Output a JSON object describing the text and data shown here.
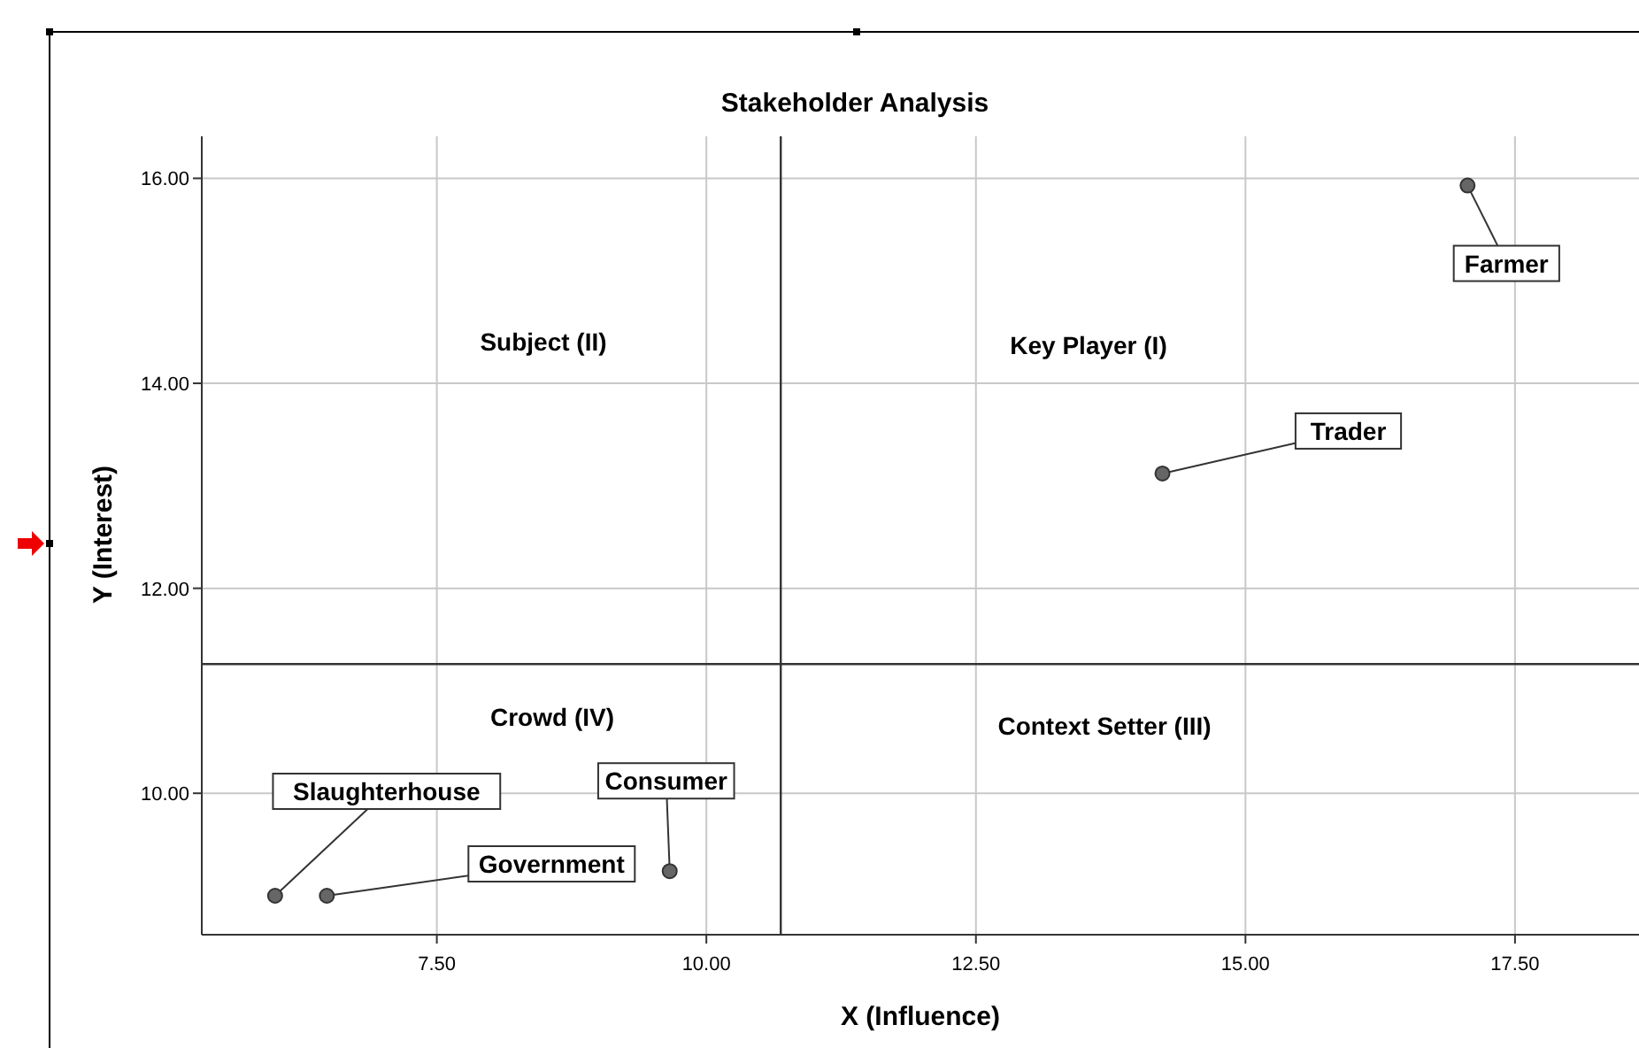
{
  "chart_data": {
    "type": "scatter",
    "title": "Stakeholder Analysis",
    "xlabel": "X (Influence)",
    "ylabel": "Y (Interest)",
    "x": [
      17.06,
      14.23,
      9.66,
      6.48,
      6.0
    ],
    "series": [
      {
        "color": "#666666",
        "values": [
          15.93,
          13.12,
          9.24,
          9.0,
          9.0
        ]
      }
    ],
    "xlim": [
      5.32,
      18.65
    ],
    "ylim": [
      8.62,
      16.41
    ],
    "xticks": [
      {
        "value": 7.5,
        "label": "7.50"
      },
      {
        "value": 10,
        "label": "10.00"
      },
      {
        "value": 12.5,
        "label": "12.50"
      },
      {
        "value": 15,
        "label": "15.00"
      },
      {
        "value": 17.5,
        "label": "17.50"
      }
    ],
    "yticks": [
      {
        "value": 10,
        "label": "10.00"
      },
      {
        "value": 12,
        "label": "12.00"
      },
      {
        "value": 14,
        "label": "14.00"
      },
      {
        "value": 16,
        "label": "16.00"
      }
    ],
    "grid": true,
    "marker": "circle",
    "ref_lines": [
      {
        "axis": "x",
        "value": 10.69,
        "color": "#333333"
      },
      {
        "axis": "y",
        "value": 11.26,
        "color": "#333333"
      }
    ],
    "annotations": [
      "Key Player (I)",
      "Subject (II)",
      "Context Setter (III)",
      "Crowd (IV)",
      {
        "text": "Farmer",
        "x": 17.06,
        "y": 15.93
      },
      {
        "text": "Trader",
        "x": 14.23,
        "y": 13.12
      },
      {
        "text": "Consumer",
        "x": 9.66,
        "y": 9.24
      },
      {
        "text": "Government",
        "x": 6.48,
        "y": 9.0
      },
      {
        "text": "Slaughterhouse",
        "x": 6.0,
        "y": 9.0
      }
    ]
  }
}
